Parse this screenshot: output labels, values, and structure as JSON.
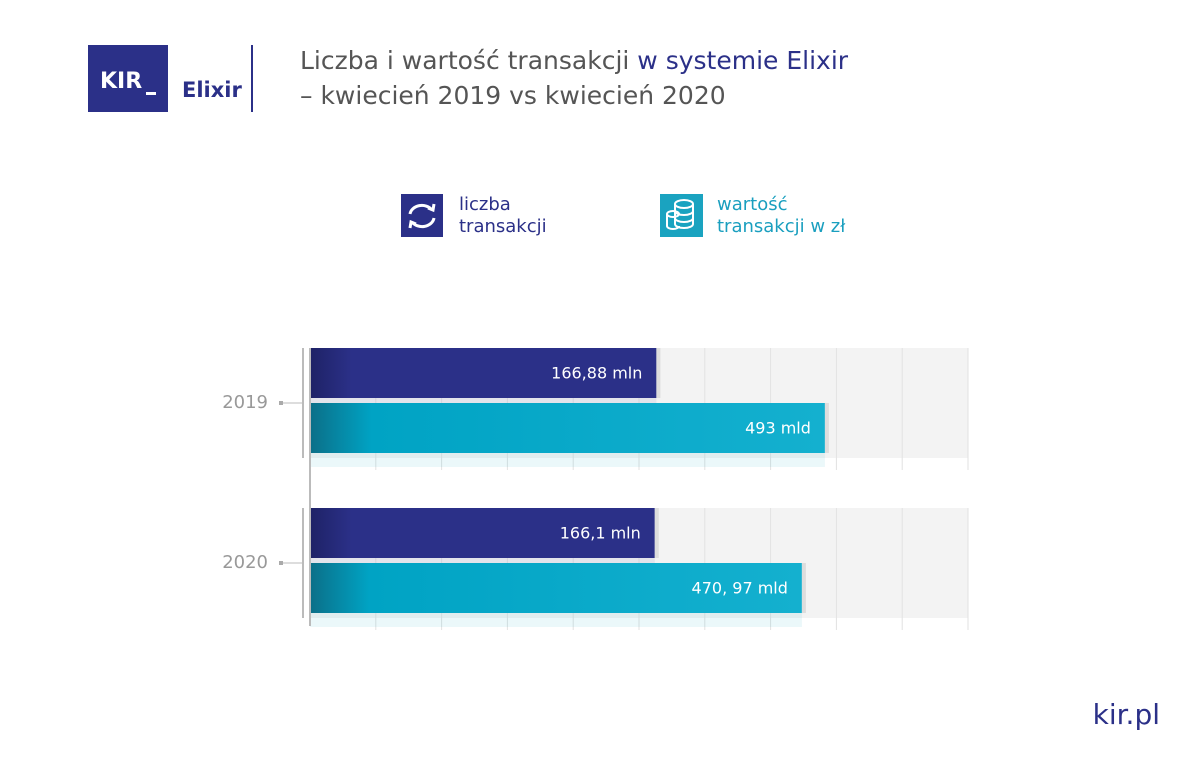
{
  "header": {
    "logo": "KIR",
    "brand": "Elixir"
  },
  "footer": "kir.pl",
  "chart_data": {
    "type": "hbar",
    "title": [
      "Liczba i wartość transakcji",
      "w systemie Elixir",
      "– kwiecień 2019 vs kwiecień 2020"
    ],
    "categories": [
      "2019",
      "2020"
    ],
    "xlim": [
      0,
      317
    ],
    "x2lim": [
      0,
      630
    ],
    "series": [
      {
        "name": "liczba transakcji",
        "color": "#2b3088",
        "values": [
          166.88,
          166.1
        ],
        "value_labels": [
          "166,88 mln",
          "166,1 mln"
        ]
      },
      {
        "name": "wartość transakcji w zł",
        "color": "#00a3c4",
        "axis": "x2",
        "values": [
          493,
          470.97
        ],
        "value_labels": [
          "493 mld",
          "470, 97 mld"
        ]
      }
    ]
  }
}
